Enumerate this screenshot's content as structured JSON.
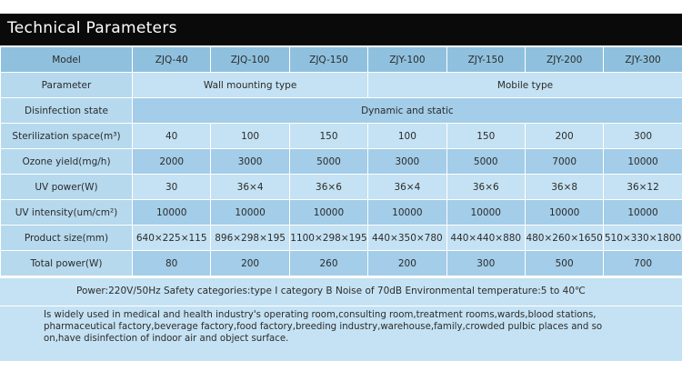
{
  "title": "Technical Parameters",
  "header": {
    "label": "Model",
    "models": [
      "ZJQ-40",
      "ZJQ-100",
      "ZJQ-150",
      "ZJY-100",
      "ZJY-150",
      "ZJY-200",
      "ZJY-300"
    ]
  },
  "parameter_row": {
    "label": "Parameter",
    "wall": "Wall mounting type",
    "mobile": "Mobile type"
  },
  "disinfection_row": {
    "label": "Disinfection state",
    "value": "Dynamic and static"
  },
  "rows": [
    {
      "label": "Sterilization space(m³)",
      "values": [
        "40",
        "100",
        "150",
        "100",
        "150",
        "200",
        "300"
      ]
    },
    {
      "label": "Ozone yield(mg/h)",
      "values": [
        "2000",
        "3000",
        "5000",
        "3000",
        "5000",
        "7000",
        "10000"
      ]
    },
    {
      "label": "UV power(W)",
      "values": [
        "30",
        "36×4",
        "36×6",
        "36×4",
        "36×6",
        "36×8",
        "36×12"
      ]
    },
    {
      "label": "UV intensity(um/cm²)",
      "values": [
        "10000",
        "10000",
        "10000",
        "10000",
        "10000",
        "10000",
        "10000"
      ]
    },
    {
      "label": "Product size(mm)",
      "values": [
        "640×225×115",
        "896×298×195",
        "1100×298×195",
        "440×350×780",
        "440×440×880",
        "480×260×1650",
        "510×330×1800"
      ]
    },
    {
      "label": "Total power(W)",
      "values": [
        "80",
        "200",
        "260",
        "200",
        "300",
        "500",
        "700"
      ]
    }
  ],
  "power_line": "Power:220V/50Hz   Safety categories:type I category B   Noise of 70dB    Environmental temperature:5 to 40℃",
  "usage_text": "Is widely used in medical and health industry's operating room,consulting room,treatment rooms,wards,blood stations, pharmaceutical factory,beverage factory,food factory,breeding industry,warehouse,family,crowded pulbic places and so on,have disinfection of indoor air and object surface.",
  "colors": {
    "title_bar": "#0a0a0a",
    "header": "#8fc1df",
    "label": "#b6d9ee",
    "dark_cell": "#a3cde8",
    "light_cell": "#c4e2f3"
  }
}
